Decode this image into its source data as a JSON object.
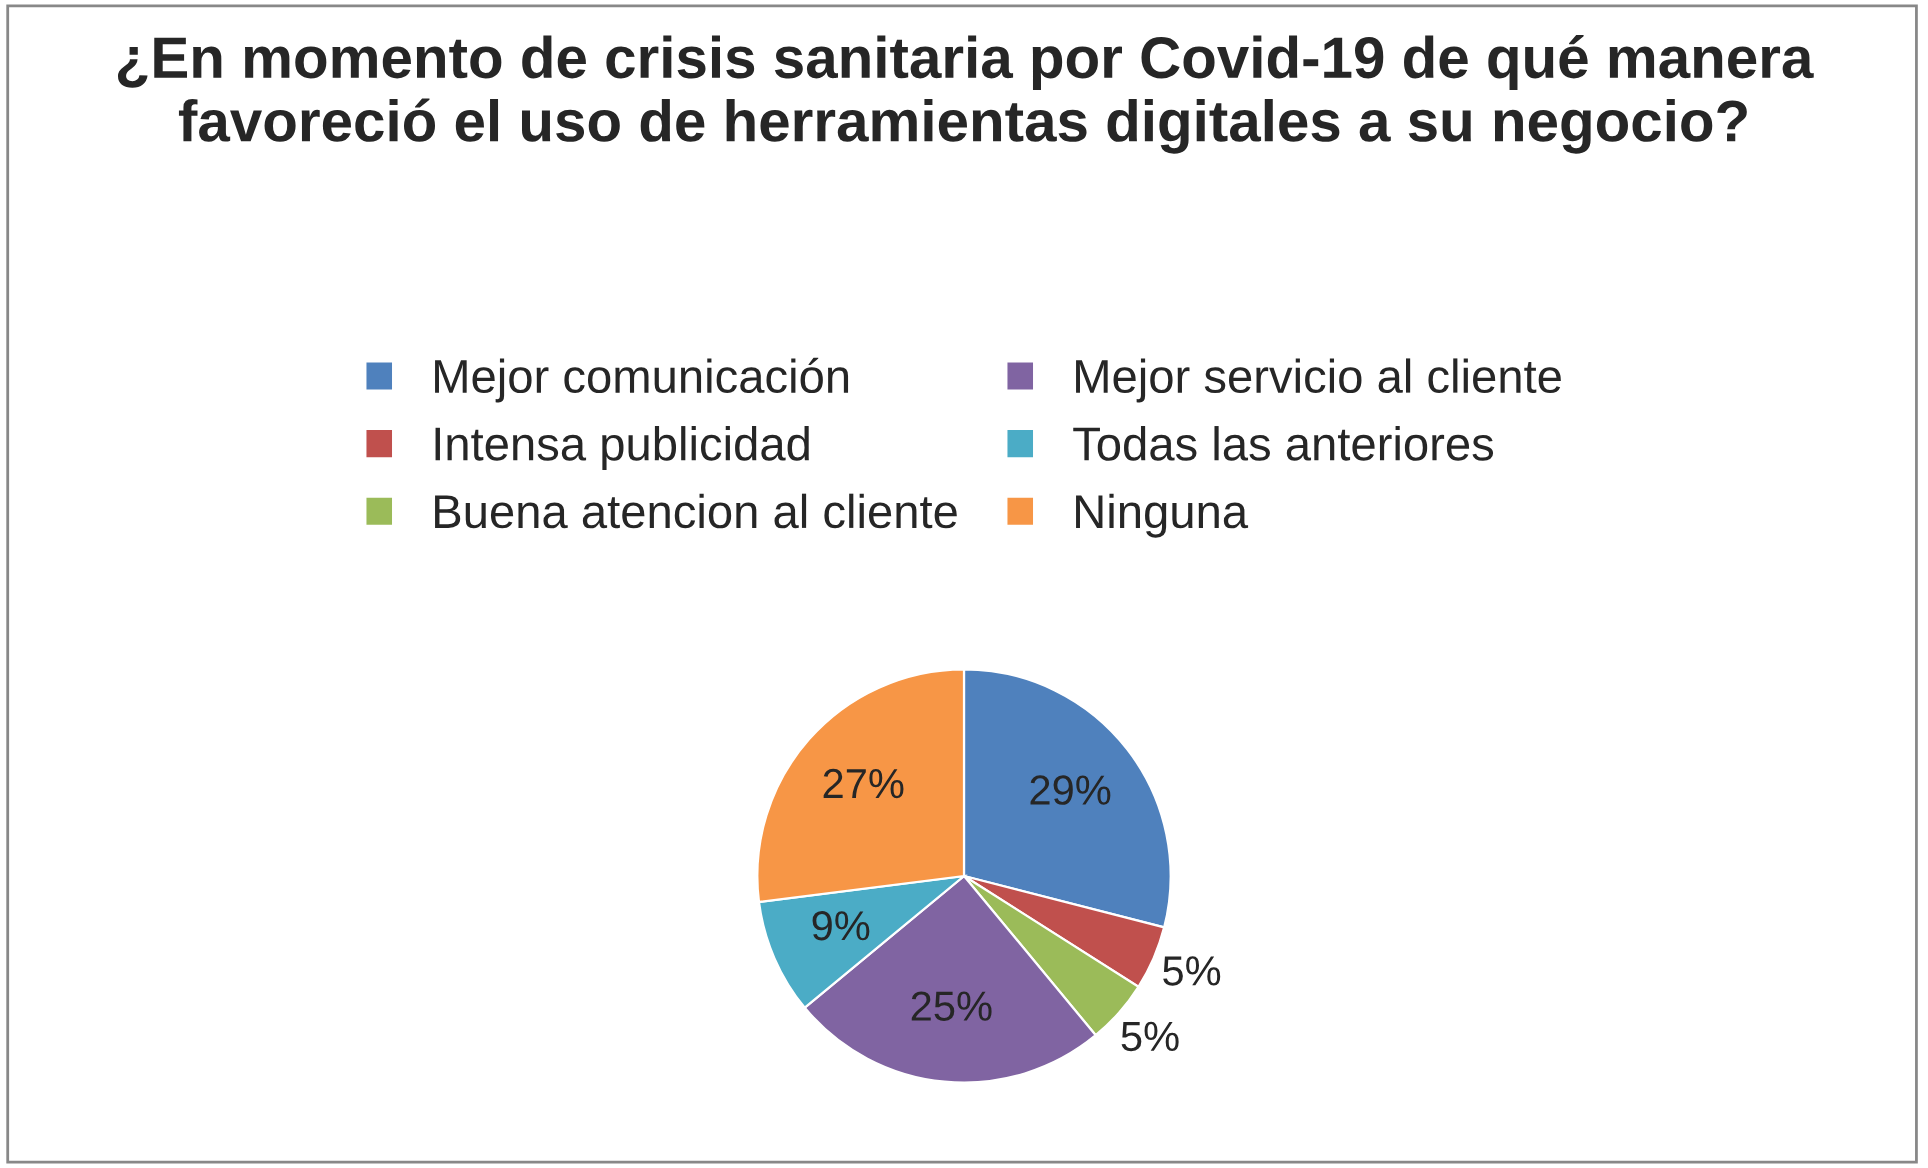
{
  "chart_data": {
    "type": "pie",
    "title": "¿En momento de crisis sanitaria por Covid-19 de qué manera favoreció el uso de herramientas digitales a su negocio?",
    "categories": [
      "Mejor comunicación",
      "Intensa publicidad",
      "Buena atencion al cliente",
      "Mejor servicio al cliente",
      "Todas las anteriores",
      "Ninguna"
    ],
    "values": [
      29,
      5,
      5,
      25,
      9,
      27
    ],
    "colors": [
      "#4f81bd",
      "#c0504d",
      "#9bbb59",
      "#8064a2",
      "#4bacc6",
      "#f79646"
    ],
    "value_labels": [
      "29%",
      "5%",
      "5%",
      "25%",
      "9%",
      "27%"
    ],
    "legend": "top"
  }
}
